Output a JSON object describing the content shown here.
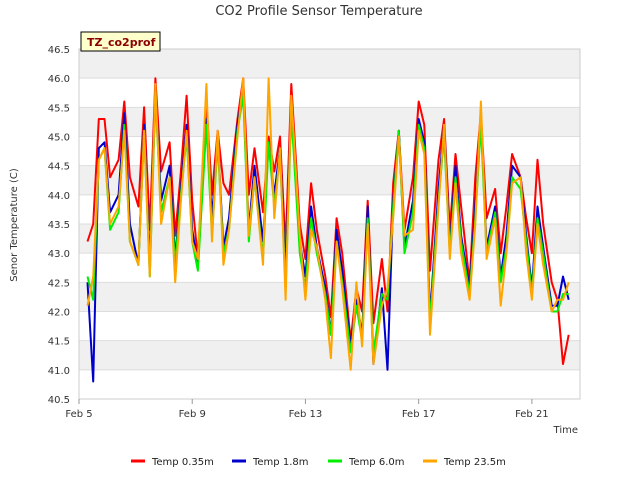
{
  "chart_data": {
    "type": "line",
    "title": "CO2 Profile Sensor Temperature",
    "xlabel": "Time",
    "ylabel": "Senor Temperature (C)",
    "site_label": "TZ_co2prof",
    "xlim": [
      5,
      22.7
    ],
    "ylim": [
      40.5,
      46.5
    ],
    "x_ticks": [
      {
        "value": 5,
        "label": "Feb 5"
      },
      {
        "value": 9,
        "label": "Feb 9"
      },
      {
        "value": 13,
        "label": "Feb 13"
      },
      {
        "value": 17,
        "label": "Feb 17"
      },
      {
        "value": 21,
        "label": "Feb 21"
      }
    ],
    "y_ticks": [
      "40.5",
      "41.0",
      "41.5",
      "42.0",
      "42.5",
      "43.0",
      "43.5",
      "44.0",
      "44.5",
      "45.0",
      "45.5",
      "46.0",
      "46.5"
    ],
    "x_days": [
      5.3,
      5.5,
      5.7,
      5.9,
      6.1,
      6.4,
      6.6,
      6.8,
      7.1,
      7.3,
      7.5,
      7.7,
      7.9,
      8.2,
      8.4,
      8.6,
      8.8,
      9.0,
      9.2,
      9.5,
      9.7,
      9.9,
      10.1,
      10.3,
      10.6,
      10.8,
      11.0,
      11.2,
      11.5,
      11.7,
      11.9,
      12.1,
      12.3,
      12.5,
      12.8,
      13.0,
      13.2,
      13.4,
      13.7,
      13.9,
      14.1,
      14.3,
      14.6,
      14.8,
      15.0,
      15.2,
      15.4,
      15.7,
      15.9,
      16.1,
      16.3,
      16.5,
      16.8,
      17.0,
      17.2,
      17.4,
      17.7,
      17.9,
      18.1,
      18.3,
      18.5,
      18.8,
      19.0,
      19.2,
      19.4,
      19.7,
      19.9,
      20.1,
      20.3,
      20.6,
      20.8,
      21.0,
      21.2,
      21.4,
      21.7,
      21.9,
      22.1,
      22.3
    ],
    "series": [
      {
        "name": "Temp 0.35m",
        "color": "#ff0000",
        "values": [
          43.2,
          43.5,
          45.3,
          45.3,
          44.3,
          44.6,
          45.6,
          44.3,
          43.8,
          45.5,
          43.4,
          46.0,
          44.4,
          44.9,
          43.3,
          44.4,
          45.7,
          43.9,
          42.9,
          45.6,
          44.0,
          45.1,
          44.2,
          44.0,
          45.3,
          46.0,
          44.0,
          44.8,
          43.7,
          45.0,
          44.4,
          45.0,
          43.1,
          45.9,
          43.5,
          42.9,
          44.2,
          43.4,
          42.6,
          41.9,
          43.6,
          43.0,
          41.5,
          42.4,
          42.0,
          43.9,
          41.8,
          42.9,
          42.0,
          44.2,
          45.1,
          43.4,
          44.3,
          45.6,
          45.2,
          42.7,
          44.6,
          45.3,
          43.4,
          44.7,
          43.8,
          42.5,
          44.3,
          45.4,
          43.6,
          44.1,
          43.0,
          43.8,
          44.7,
          44.3,
          43.6,
          43.0,
          44.6,
          43.5,
          42.5,
          42.2,
          41.1,
          41.6
        ]
      },
      {
        "name": "Temp 1.8m",
        "color": "#0000cc",
        "values": [
          42.5,
          40.8,
          44.8,
          44.9,
          43.7,
          44.0,
          45.4,
          43.5,
          42.8,
          45.2,
          42.8,
          45.8,
          43.9,
          44.5,
          42.9,
          44.1,
          45.2,
          43.4,
          42.8,
          45.3,
          43.6,
          45.0,
          43.1,
          43.6,
          45.2,
          45.8,
          43.4,
          44.5,
          43.2,
          44.9,
          44.0,
          44.8,
          42.6,
          45.6,
          43.2,
          42.6,
          43.8,
          43.1,
          42.4,
          41.6,
          43.4,
          42.7,
          41.4,
          42.2,
          41.6,
          43.8,
          41.1,
          42.4,
          41.0,
          43.9,
          45.1,
          43.1,
          43.9,
          45.3,
          44.9,
          41.9,
          44.1,
          45.2,
          43.1,
          44.5,
          43.3,
          42.4,
          43.8,
          45.3,
          43.1,
          43.8,
          42.6,
          43.3,
          44.5,
          44.3,
          43.3,
          42.4,
          43.8,
          43.1,
          42.1,
          42.1,
          42.6,
          42.2
        ]
      },
      {
        "name": "Temp 6.0m",
        "color": "#00ee00",
        "values": [
          42.6,
          42.2,
          44.6,
          44.8,
          43.4,
          43.7,
          45.2,
          43.2,
          42.8,
          45.1,
          42.6,
          45.7,
          43.7,
          44.3,
          42.8,
          44.0,
          45.0,
          43.2,
          42.7,
          45.2,
          43.3,
          44.9,
          43.0,
          43.4,
          45.1,
          45.7,
          43.2,
          44.3,
          42.9,
          44.9,
          43.8,
          44.7,
          42.4,
          45.4,
          43.0,
          42.4,
          43.6,
          43.0,
          42.3,
          41.6,
          43.2,
          42.5,
          41.3,
          42.1,
          41.5,
          43.6,
          41.3,
          42.3,
          42.2,
          43.8,
          45.1,
          43.0,
          43.7,
          45.2,
          44.8,
          41.8,
          43.9,
          45.0,
          43.0,
          44.3,
          43.2,
          42.3,
          43.6,
          45.2,
          43.0,
          43.7,
          42.5,
          43.1,
          44.3,
          44.1,
          43.2,
          42.3,
          43.6,
          43.0,
          42.0,
          42.0,
          42.3,
          42.3
        ]
      },
      {
        "name": "Temp 23.5m",
        "color": "#ffa500",
        "values": [
          42.1,
          42.6,
          44.6,
          44.8,
          43.5,
          43.8,
          45.1,
          43.2,
          42.8,
          45.1,
          42.6,
          45.9,
          43.5,
          44.3,
          42.5,
          43.9,
          45.1,
          43.2,
          42.9,
          45.9,
          43.2,
          45.1,
          42.8,
          43.4,
          45.0,
          46.0,
          43.3,
          44.3,
          42.8,
          46.0,
          43.6,
          44.8,
          42.2,
          45.7,
          43.3,
          42.2,
          43.4,
          43.1,
          42.2,
          41.2,
          43.2,
          42.4,
          41.0,
          42.5,
          41.4,
          43.5,
          41.1,
          42.1,
          42.4,
          43.6,
          45.0,
          43.3,
          43.4,
          45.1,
          44.7,
          41.6,
          43.8,
          45.2,
          42.9,
          44.2,
          43.0,
          42.2,
          43.5,
          45.6,
          42.9,
          43.6,
          42.1,
          43.0,
          44.2,
          44.3,
          43.0,
          42.2,
          43.5,
          42.8,
          42.0,
          42.2,
          42.2,
          42.5
        ]
      }
    ],
    "legend_position": "bottom"
  }
}
